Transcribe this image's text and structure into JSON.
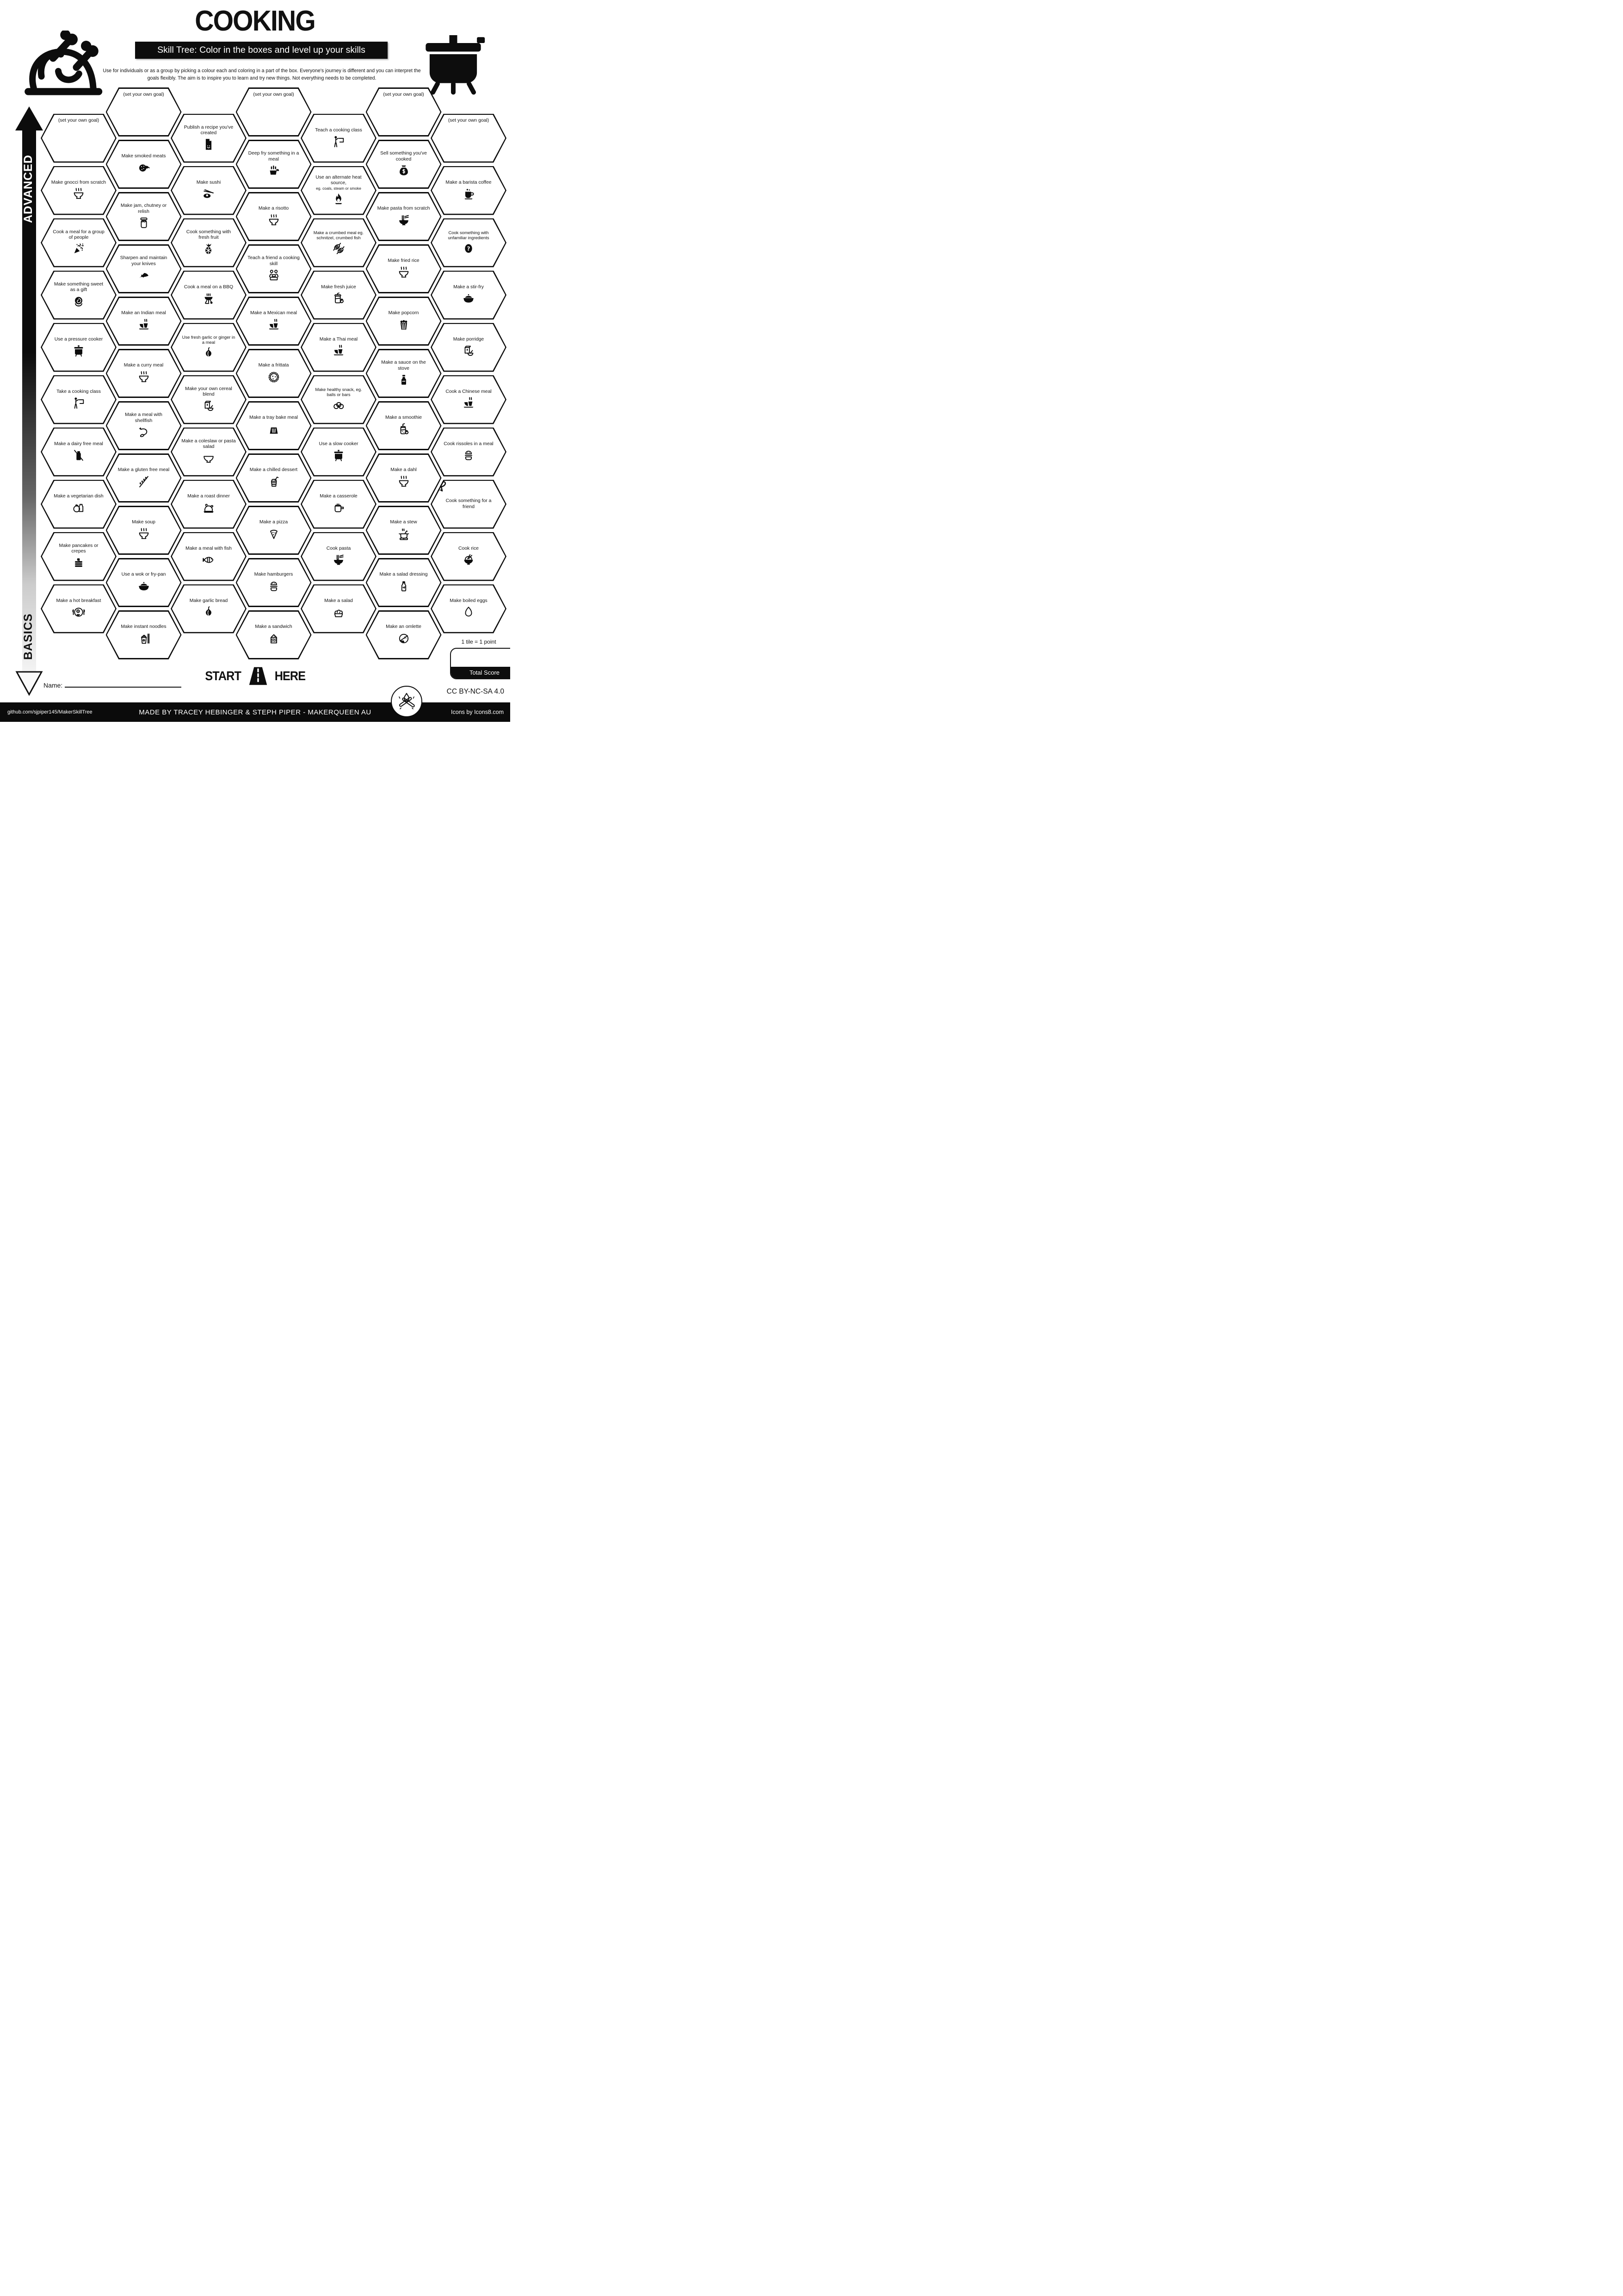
{
  "header": {
    "title": "COOKING",
    "subtitle": "Skill Tree:  Color in the boxes and level up your skills",
    "description": "Use for individuals or as a group by picking a colour each and coloring in a part of the box.  Everyone's journey is different and you can interpret the goals flexibly.  The aim is to inspire you to learn and try new things. Not everything needs to be completed."
  },
  "axis": {
    "advanced": "ADVANCED",
    "basics": "BASICS"
  },
  "grid": {
    "columns": [
      {
        "tiles": [
          {
            "label": "(set your own goal)",
            "icon": "",
            "goal": true
          },
          {
            "label": "Make gnocci from scratch",
            "icon": "bowl-steam"
          },
          {
            "label": "Cook a meal for a group of people",
            "icon": "party-popper"
          },
          {
            "label": "Make something sweet as a gift",
            "icon": "sweet-roll"
          },
          {
            "label": "Use a pressure cooker",
            "icon": "pressure-cooker"
          },
          {
            "label": "Take a cooking class",
            "icon": "presenter"
          },
          {
            "label": "Make a dairy free meal",
            "icon": "no-dairy"
          },
          {
            "label": "Make a vegetarian dish",
            "icon": "tomato-milk"
          },
          {
            "label": "Make pancakes or crepes",
            "icon": "pancakes"
          },
          {
            "label": "Make a hot breakfast",
            "icon": "breakfast-plate"
          }
        ]
      },
      {
        "tiles": [
          {
            "label": "(set your own goal)",
            "icon": "",
            "goal": true
          },
          {
            "label": "Make smoked meats",
            "icon": "salami"
          },
          {
            "label": "Make jam, chutney or relish",
            "icon": "jar"
          },
          {
            "label": "Sharpen and maintain your knives",
            "icon": "knife"
          },
          {
            "label": "Make an Indian meal",
            "icon": "meal-cup"
          },
          {
            "label": "Make a curry meal",
            "icon": "bowl-steam"
          },
          {
            "label": "Make a meal with shellfish",
            "icon": "shrimp"
          },
          {
            "label": "Make a gluten free meal",
            "icon": "no-gluten"
          },
          {
            "label": "Make soup",
            "icon": "bowl-steam"
          },
          {
            "label": "Use a wok or fry-pan",
            "icon": "wok"
          },
          {
            "label": "Make instant noodles",
            "icon": "noodle-cup"
          }
        ]
      },
      {
        "tiles": [
          {
            "label": "Publish a recipe you've created",
            "icon": "document"
          },
          {
            "label": "Make sushi",
            "icon": "sushi"
          },
          {
            "label": "Cook something with fresh fruit",
            "icon": "pineapple"
          },
          {
            "label": "Cook a meal on a BBQ",
            "icon": "bbq-grill"
          },
          {
            "label": "Use fresh garlic or ginger in a meal",
            "icon": "garlic"
          },
          {
            "label": "Make your own cereal blend",
            "icon": "cereal"
          },
          {
            "label": "Make a coleslaw or pasta salad",
            "icon": "bowl"
          },
          {
            "label": "Make a roast dinner",
            "icon": "roast-turkey"
          },
          {
            "label": "Make a meal with fish",
            "icon": "fish"
          },
          {
            "label": "Make garlic bread",
            "icon": "garlic"
          }
        ]
      },
      {
        "tiles": [
          {
            "label": "(set your own goal)",
            "icon": "",
            "goal": true
          },
          {
            "label": "Deep fry something in a meal",
            "icon": "fry-basket"
          },
          {
            "label": "Make a risotto",
            "icon": "bowl-steam"
          },
          {
            "label": "Teach a friend a cooking skill",
            "icon": "two-people"
          },
          {
            "label": "Make a Mexican meal",
            "icon": "meal-cup"
          },
          {
            "label": "Make a frittata",
            "icon": "frittata"
          },
          {
            "label": "Make a tray bake meal",
            "icon": "tray"
          },
          {
            "label": "Make a chilled dessert",
            "icon": "dessert-cup"
          },
          {
            "label": "Make a pizza",
            "icon": "pizza-slice"
          },
          {
            "label": "Make hamburgers",
            "icon": "burger"
          },
          {
            "label": "Make a sandwich",
            "icon": "sandwich"
          }
        ]
      },
      {
        "tiles": [
          {
            "label": "Teach a cooking class",
            "icon": "presenter"
          },
          {
            "label": "Use an alternate heat source,",
            "sub": "eg. coals, steam or smoke",
            "icon": "flame"
          },
          {
            "label": "Make a crumbed meal eg. schnitzel, crumbed fish",
            "icon": "schnitzel"
          },
          {
            "label": "Make fresh juice",
            "icon": "juice-jar"
          },
          {
            "label": "Make a Thai meal",
            "icon": "meal-cup"
          },
          {
            "label": "Make healthy snack, eg. balls or bars",
            "icon": "snack-balls"
          },
          {
            "label": "Use a slow cooker",
            "icon": "pressure-cooker"
          },
          {
            "label": "Make a casserole",
            "icon": "saucepan"
          },
          {
            "label": "Cook pasta",
            "icon": "noodle-bowl"
          },
          {
            "label": "Make a salad",
            "icon": "salad-bowl"
          }
        ]
      },
      {
        "tiles": [
          {
            "label": "(set your own goal)",
            "icon": "",
            "goal": true
          },
          {
            "label": "Sell something you've cooked",
            "icon": "money-bag"
          },
          {
            "label": "Make pasta from scratch",
            "icon": "noodle-bowl"
          },
          {
            "label": "Make fried rice",
            "icon": "bowl-steam"
          },
          {
            "label": "Make popcorn",
            "icon": "popcorn"
          },
          {
            "label": "Make a sauce on the stove",
            "icon": "sauce-bottle"
          },
          {
            "label": "Make a smoothie",
            "icon": "smoothie-jar"
          },
          {
            "label": "Make a dahl",
            "icon": "bowl-steam"
          },
          {
            "label": "Make a stew",
            "icon": "stew-pot"
          },
          {
            "label": "Make a salad dressing",
            "icon": "dressing-bottle"
          },
          {
            "label": "Make an omlette",
            "icon": "omelette"
          }
        ]
      },
      {
        "tiles": [
          {
            "label": "(set your own goal)",
            "icon": "",
            "goal": true
          },
          {
            "label": "Make a barista coffee",
            "icon": "coffee-cup"
          },
          {
            "label": "Cook something with unfamiliar ingredients",
            "icon": "question"
          },
          {
            "label": "Make a stir-fry",
            "icon": "wok"
          },
          {
            "label": "Make porridge",
            "icon": "cereal"
          },
          {
            "label": "Cook a Chinese meal",
            "icon": "meal-cup"
          },
          {
            "label": "Cook rissoles in a meal",
            "icon": "burger"
          },
          {
            "label": "Cook something for a friend",
            "icon": "gift-bow",
            "corner": true
          },
          {
            "label": "Cook rice",
            "icon": "rice-bowl"
          },
          {
            "label": "Make boiled eggs",
            "icon": "egg"
          }
        ]
      }
    ]
  },
  "start": {
    "left": "START",
    "right": "HERE"
  },
  "name_label": "Name:",
  "score": {
    "note": "1 tile = 1 point",
    "label": "Total Score"
  },
  "license": "CC BY-NC-SA 4.0",
  "footer": {
    "github": "github.com/sjpiper145/MakerSkillTree",
    "made_by": "MADE BY TRACEY HEBINGER & STEPH PIPER  -  MAKERQUEEN AU",
    "icons_credit": "Icons by Icons8.com"
  }
}
